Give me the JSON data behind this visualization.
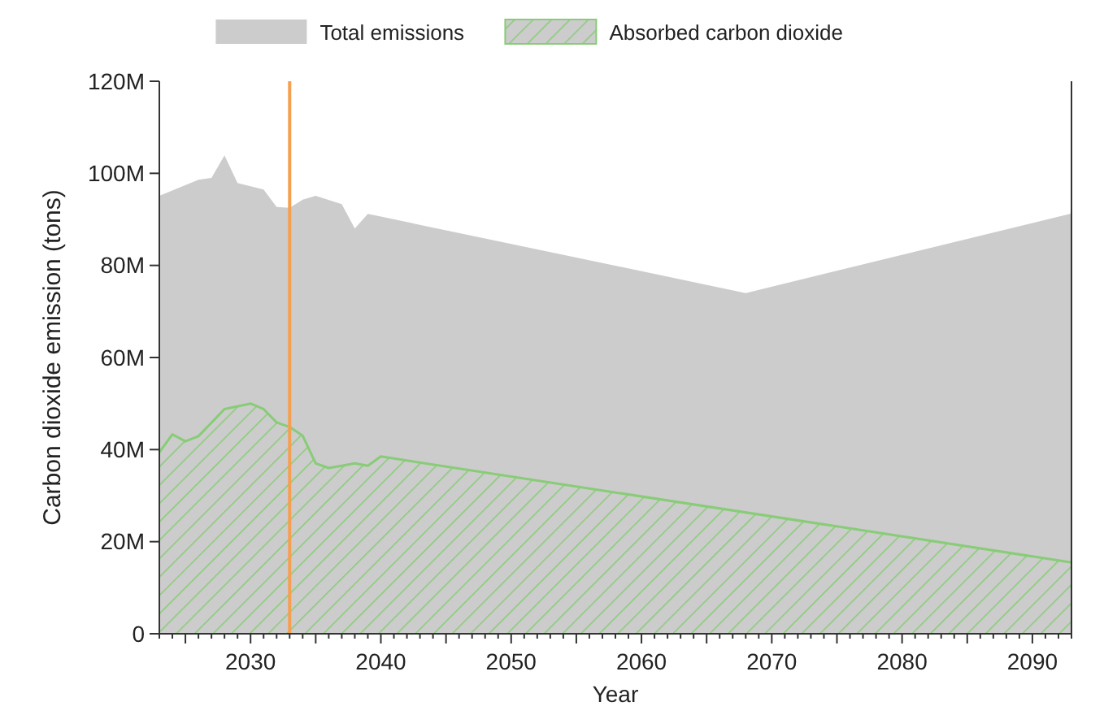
{
  "chart_data": {
    "type": "area",
    "xlabel": "Year",
    "ylabel": "Carbon dioxide emission (tons)",
    "legend": "top",
    "series": [
      {
        "name": "Total emissions",
        "color": "#cccccc",
        "x": [
          2023,
          2026,
          2027,
          2028,
          2029,
          2031,
          2032,
          2033,
          2034,
          2035,
          2037,
          2038,
          2039,
          2040,
          2068,
          2093
        ],
        "values": [
          95100000,
          98600000,
          99000000,
          103900000,
          97900000,
          96500000,
          92700000,
          92500000,
          94300000,
          95100000,
          93300000,
          88000000,
          91200000,
          90600000,
          74000000,
          91300000
        ]
      },
      {
        "name": "Absorbed carbon dioxide",
        "color": "#88cc77",
        "x": [
          2023,
          2024,
          2025,
          2026,
          2028,
          2030,
          2031,
          2032,
          2033,
          2034,
          2035,
          2036,
          2037,
          2038,
          2039,
          2040,
          2093
        ],
        "values": [
          39400000,
          43300000,
          41800000,
          42900000,
          48800000,
          50000000,
          48800000,
          45900000,
          44900000,
          43000000,
          37000000,
          36000000,
          36500000,
          37000000,
          36500000,
          38500000,
          15500000
        ]
      }
    ],
    "xlim": [
      2023,
      2093
    ],
    "xticks": [
      {
        "value": 2023,
        "label": null
      },
      {
        "value": 2024,
        "label": null
      },
      {
        "value": 2025,
        "label": null
      },
      {
        "value": 2026,
        "label": null
      },
      {
        "value": 2027,
        "label": null
      },
      {
        "value": 2028,
        "label": null
      },
      {
        "value": 2029,
        "label": null
      },
      2030,
      {
        "value": 2031,
        "label": null
      },
      {
        "value": 2032,
        "label": null
      },
      {
        "value": 2033,
        "label": null
      },
      {
        "value": 2034,
        "label": null
      },
      {
        "value": 2035,
        "label": null
      },
      {
        "value": 2036,
        "label": null
      },
      {
        "value": 2037,
        "label": null
      },
      {
        "value": 2038,
        "label": null
      },
      {
        "value": 2039,
        "label": null
      },
      2040,
      {
        "value": 2041,
        "label": null
      },
      {
        "value": 2042,
        "label": null
      },
      {
        "value": 2043,
        "label": null
      },
      {
        "value": 2044,
        "label": null
      },
      {
        "value": 2045,
        "label": null
      },
      {
        "value": 2046,
        "label": null
      },
      {
        "value": 2047,
        "label": null
      },
      {
        "value": 2048,
        "label": null
      },
      {
        "value": 2049,
        "label": null
      },
      2050,
      {
        "value": 2051,
        "label": null
      },
      {
        "value": 2052,
        "label": null
      },
      {
        "value": 2053,
        "label": null
      },
      {
        "value": 2054,
        "label": null
      },
      {
        "value": 2055,
        "label": null
      },
      {
        "value": 2056,
        "label": null
      },
      {
        "value": 2057,
        "label": null
      },
      {
        "value": 2058,
        "label": null
      },
      {
        "value": 2059,
        "label": null
      },
      2060,
      {
        "value": 2061,
        "label": null
      },
      {
        "value": 2062,
        "label": null
      },
      {
        "value": 2063,
        "label": null
      },
      {
        "value": 2064,
        "label": null
      },
      {
        "value": 2065,
        "label": null
      },
      {
        "value": 2066,
        "label": null
      },
      {
        "value": 2067,
        "label": null
      },
      {
        "value": 2068,
        "label": null
      },
      {
        "value": 2069,
        "label": null
      },
      2070,
      {
        "value": 2071,
        "label": null
      },
      {
        "value": 2072,
        "label": null
      },
      {
        "value": 2073,
        "label": null
      },
      {
        "value": 2074,
        "label": null
      },
      {
        "value": 2075,
        "label": null
      },
      {
        "value": 2076,
        "label": null
      },
      {
        "value": 2077,
        "label": null
      },
      {
        "value": 2078,
        "label": null
      },
      {
        "value": 2079,
        "label": null
      },
      2080,
      {
        "value": 2081,
        "label": null
      },
      {
        "value": 2082,
        "label": null
      },
      {
        "value": 2083,
        "label": null
      },
      {
        "value": 2084,
        "label": null
      },
      {
        "value": 2085,
        "label": null
      },
      {
        "value": 2086,
        "label": null
      },
      {
        "value": 2087,
        "label": null
      },
      {
        "value": 2088,
        "label": null
      },
      {
        "value": 2089,
        "label": null
      },
      2090,
      {
        "value": 2091,
        "label": null
      },
      {
        "value": 2092,
        "label": null
      },
      {
        "value": 2093,
        "label": null
      }
    ],
    "ylim": [
      0,
      120000000
    ],
    "yticks": [
      0,
      {
        "value": 20000000,
        "label": "20M"
      },
      {
        "value": 40000000,
        "label": "40M"
      },
      {
        "value": 60000000,
        "label": "60M"
      },
      {
        "value": 80000000,
        "label": "80M"
      },
      {
        "value": 100000000,
        "label": "100M"
      },
      {
        "value": 120000000,
        "label": "120M"
      }
    ],
    "ref_lines": [
      {
        "axis": "x",
        "value": 2033,
        "color": "#f5a050"
      }
    ]
  }
}
